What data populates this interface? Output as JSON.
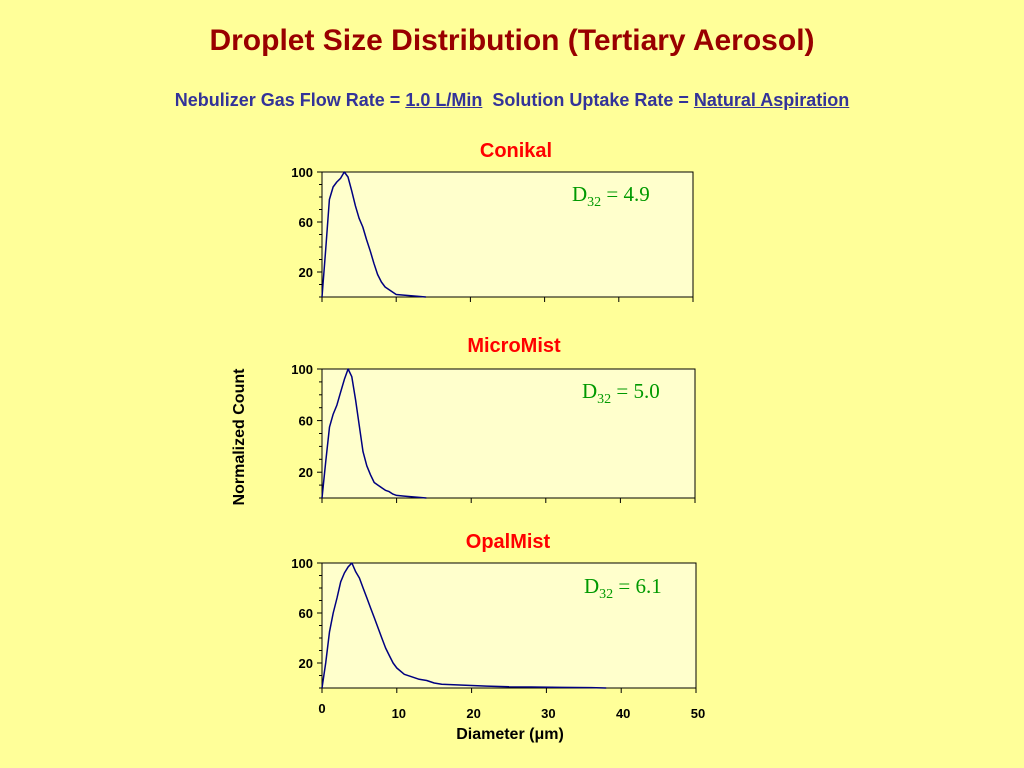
{
  "title": "Droplet  Size Distribution (Tertiary Aerosol)",
  "subtitle": {
    "flow_label": "Nebulizer Gas Flow Rate = ",
    "flow_value": "1.0 L/Min",
    "uptake_label": "Solution Uptake Rate = ",
    "uptake_value": "Natural Aspiration"
  },
  "ylabel": "Normalized Count",
  "xlabel_prefix": "Diameter (",
  "xlabel_mu": "μ",
  "xlabel_suffix": "m)",
  "colors": {
    "line": "#000080",
    "panel_title": "#ff0000",
    "annotation": "#009900",
    "plot_bg": "#ffffcc"
  },
  "chart_data": [
    {
      "type": "line",
      "title": "Conikal",
      "annotation": {
        "symbol": "D",
        "subscript": "32",
        "text": " = 4.9"
      },
      "xlim": [
        0,
        50
      ],
      "ylim": [
        0,
        100
      ],
      "yticks": [
        20,
        60,
        100
      ],
      "x": [
        0,
        0.5,
        1,
        1.5,
        2,
        2.5,
        3,
        3.5,
        4,
        4.5,
        5,
        5.5,
        6,
        6.5,
        7,
        7.5,
        8,
        8.5,
        9,
        9.5,
        10,
        11,
        12,
        13,
        14
      ],
      "y": [
        0,
        38,
        78,
        88,
        92,
        95,
        100,
        96,
        85,
        73,
        63,
        56,
        46,
        37,
        27,
        18,
        12,
        8,
        6,
        4,
        2,
        1.5,
        1,
        0.5,
        0
      ]
    },
    {
      "type": "line",
      "title": "MicroMist",
      "annotation": {
        "symbol": "D",
        "subscript": "32",
        "text": " = 5.0"
      },
      "xlim": [
        0,
        50
      ],
      "ylim": [
        0,
        100
      ],
      "yticks": [
        20,
        60,
        100
      ],
      "x": [
        0,
        0.5,
        1,
        1.5,
        2,
        2.5,
        3,
        3.5,
        4,
        4.5,
        5,
        5.5,
        6,
        6.5,
        7,
        7.5,
        8,
        8.5,
        9,
        9.5,
        10,
        11,
        12,
        13,
        14
      ],
      "y": [
        0,
        28,
        55,
        65,
        72,
        82,
        92,
        100,
        94,
        76,
        56,
        36,
        25,
        18,
        12,
        10,
        8,
        6,
        5,
        3,
        2,
        1.5,
        1,
        0.5,
        0
      ]
    },
    {
      "type": "line",
      "title": "OpalMist",
      "annotation": {
        "symbol": "D",
        "subscript": "32",
        "text": " = 6.1"
      },
      "xlim": [
        0,
        50
      ],
      "ylim": [
        0,
        100
      ],
      "xticks": [
        0,
        10,
        20,
        30,
        40,
        50
      ],
      "yticks": [
        20,
        60,
        100
      ],
      "x": [
        0,
        0.5,
        1,
        1.5,
        2,
        2.5,
        3,
        3.5,
        4,
        4.5,
        5,
        5.5,
        6,
        6.5,
        7,
        7.5,
        8,
        8.5,
        9,
        9.5,
        10,
        11,
        12,
        13,
        14,
        15,
        16,
        18,
        20,
        22,
        25,
        28,
        32,
        36,
        38
      ],
      "y": [
        0,
        20,
        45,
        60,
        72,
        85,
        92,
        97,
        100,
        93,
        88,
        80,
        72,
        64,
        56,
        48,
        40,
        32,
        26,
        20,
        16,
        11,
        9,
        7,
        6,
        4,
        3,
        2.5,
        2,
        1.5,
        1,
        0.8,
        0.5,
        0.3,
        0
      ]
    }
  ]
}
